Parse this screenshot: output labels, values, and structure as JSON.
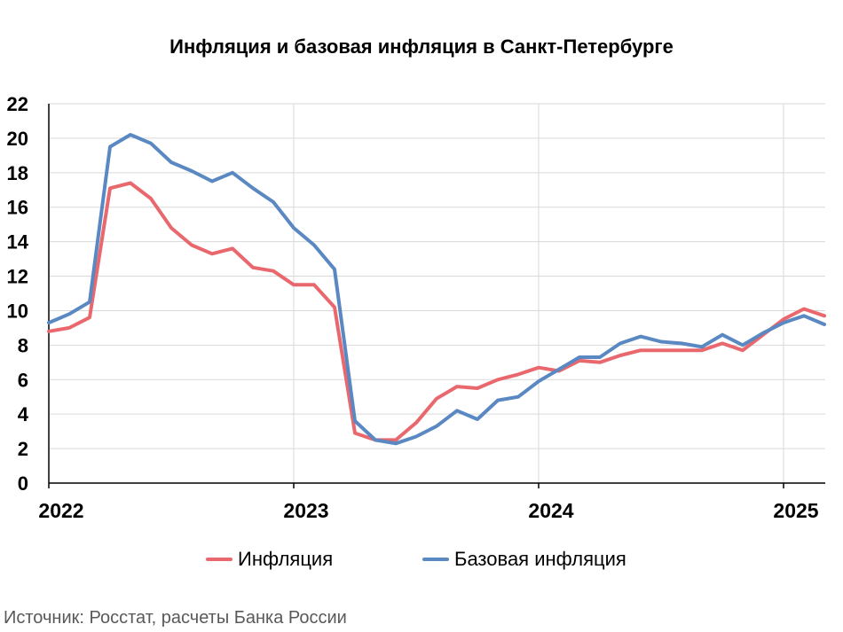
{
  "title": "Инфляция и базовая инфляция в Санкт-Петербурге",
  "source": "Источник: Росстат, расчеты Банка России",
  "colors": {
    "inflation": "#e9686e",
    "core": "#5a88c2",
    "grid": "#d9d9d9",
    "axis": "#000000"
  },
  "chart_data": {
    "type": "line",
    "title": "Инфляция и базовая инфляция в Санкт-Петербурге",
    "xlabel": "",
    "ylabel": "",
    "ylim": [
      0,
      22
    ],
    "yticks": [
      "0",
      "2",
      "4",
      "6",
      "8",
      "10",
      "12",
      "14",
      "16",
      "18",
      "20",
      "22"
    ],
    "xticks": [
      "2022",
      "2023",
      "2024",
      "2025"
    ],
    "x_start": "2022-01",
    "x_end": "2025-02",
    "grid": true,
    "legend_position": "bottom",
    "series": [
      {
        "name": "Инфляция",
        "color": "#e9686e",
        "x": [
          "2022-01",
          "2022-02",
          "2022-03",
          "2022-04",
          "2022-05",
          "2022-06",
          "2022-07",
          "2022-08",
          "2022-09",
          "2022-10",
          "2022-11",
          "2022-12",
          "2023-01",
          "2023-02",
          "2023-03",
          "2023-04",
          "2023-05",
          "2023-06",
          "2023-07",
          "2023-08",
          "2023-09",
          "2023-10",
          "2023-11",
          "2023-12",
          "2024-01",
          "2024-02",
          "2024-03",
          "2024-04",
          "2024-05",
          "2024-06",
          "2024-07",
          "2024-08",
          "2024-09",
          "2024-10",
          "2024-11",
          "2024-12",
          "2025-01",
          "2025-02",
          "2025-03"
        ],
        "values": [
          8.8,
          9.0,
          9.6,
          17.1,
          17.4,
          16.5,
          14.8,
          13.8,
          13.3,
          13.6,
          12.5,
          12.3,
          11.5,
          11.5,
          10.2,
          2.9,
          2.5,
          2.5,
          3.5,
          4.9,
          5.6,
          5.5,
          6.0,
          6.3,
          6.7,
          6.5,
          7.1,
          7.0,
          7.4,
          7.7,
          7.7,
          7.7,
          7.7,
          8.1,
          7.7,
          8.6,
          9.5,
          10.1,
          9.7
        ]
      },
      {
        "name": "Базовая инфляция",
        "color": "#5a88c2",
        "x": [
          "2022-01",
          "2022-02",
          "2022-03",
          "2022-04",
          "2022-05",
          "2022-06",
          "2022-07",
          "2022-08",
          "2022-09",
          "2022-10",
          "2022-11",
          "2022-12",
          "2023-01",
          "2023-02",
          "2023-03",
          "2023-04",
          "2023-05",
          "2023-06",
          "2023-07",
          "2023-08",
          "2023-09",
          "2023-10",
          "2023-11",
          "2023-12",
          "2024-01",
          "2024-02",
          "2024-03",
          "2024-04",
          "2024-05",
          "2024-06",
          "2024-07",
          "2024-08",
          "2024-09",
          "2024-10",
          "2024-11",
          "2024-12",
          "2025-01",
          "2025-02",
          "2025-03"
        ],
        "values": [
          9.3,
          9.8,
          10.5,
          19.5,
          20.2,
          19.7,
          18.6,
          18.1,
          17.5,
          18.0,
          17.1,
          16.3,
          14.8,
          13.8,
          12.4,
          3.6,
          2.5,
          2.3,
          2.7,
          3.3,
          4.2,
          3.7,
          4.8,
          5.0,
          5.9,
          6.6,
          7.3,
          7.3,
          8.1,
          8.5,
          8.2,
          8.1,
          7.9,
          8.6,
          8.0,
          8.7,
          9.3,
          9.7,
          9.2
        ]
      }
    ]
  }
}
